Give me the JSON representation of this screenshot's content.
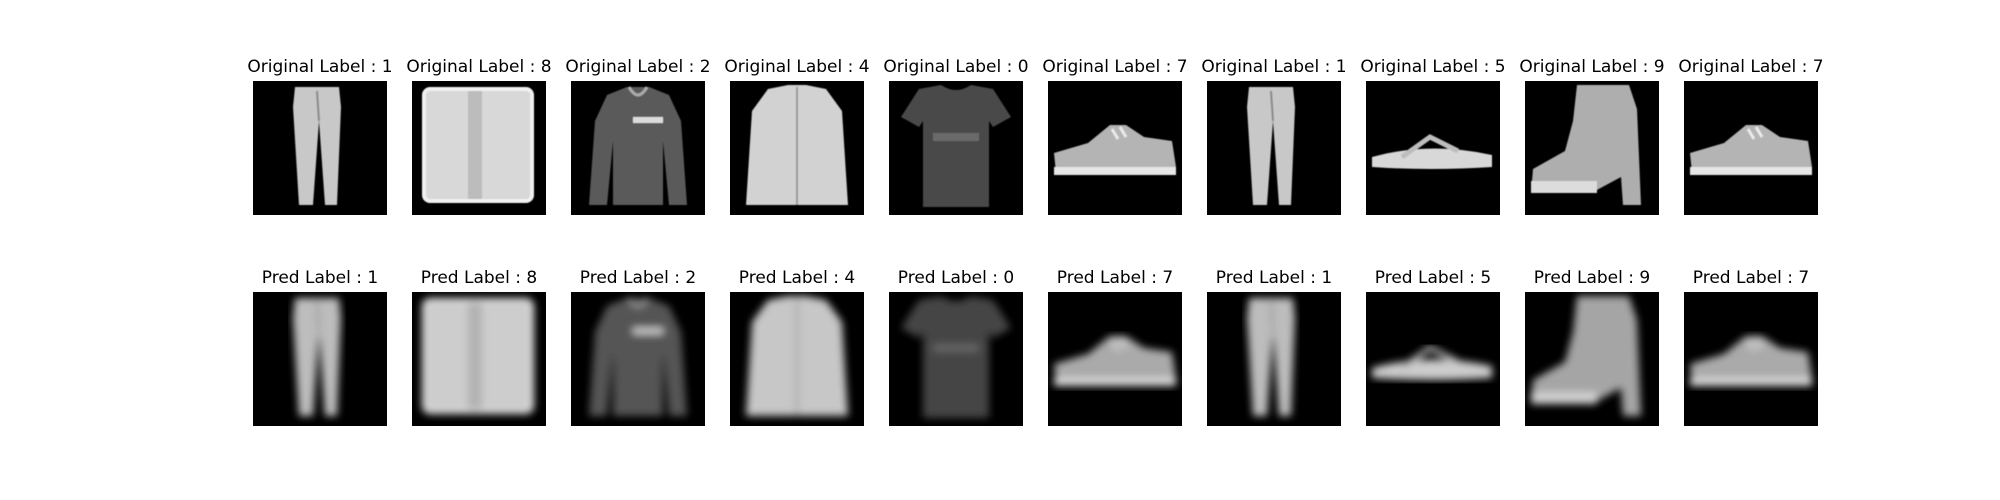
{
  "figure": {
    "rows": [
      {
        "row_name": "original",
        "label_prefix": "Original Label : ",
        "items": [
          {
            "label": "Original Label : 1",
            "class_id": 1,
            "icon": "trouser-icon",
            "style": "sharp"
          },
          {
            "label": "Original Label : 8",
            "class_id": 8,
            "icon": "bag-icon",
            "style": "sharp"
          },
          {
            "label": "Original Label : 2",
            "class_id": 2,
            "icon": "pullover-icon",
            "style": "sharp"
          },
          {
            "label": "Original Label : 4",
            "class_id": 4,
            "icon": "coat-icon",
            "style": "sharp"
          },
          {
            "label": "Original Label : 0",
            "class_id": 0,
            "icon": "tshirt-icon",
            "style": "sharp"
          },
          {
            "label": "Original Label : 7",
            "class_id": 7,
            "icon": "sneaker-icon",
            "style": "sharp"
          },
          {
            "label": "Original Label : 1",
            "class_id": 1,
            "icon": "trouser-icon",
            "style": "sharp"
          },
          {
            "label": "Original Label : 5",
            "class_id": 5,
            "icon": "sandal-icon",
            "style": "sharp"
          },
          {
            "label": "Original Label : 9",
            "class_id": 9,
            "icon": "ankle-boot-icon",
            "style": "sharp"
          },
          {
            "label": "Original Label : 7",
            "class_id": 7,
            "icon": "sneaker-icon",
            "style": "sharp"
          }
        ]
      },
      {
        "row_name": "predicted",
        "label_prefix": "Pred Label : ",
        "items": [
          {
            "label": "Pred Label : 1",
            "class_id": 1,
            "icon": "trouser-icon",
            "style": "blurred"
          },
          {
            "label": "Pred Label : 8",
            "class_id": 8,
            "icon": "bag-icon",
            "style": "blurred"
          },
          {
            "label": "Pred Label : 2",
            "class_id": 2,
            "icon": "pullover-icon",
            "style": "blurred"
          },
          {
            "label": "Pred Label : 4",
            "class_id": 4,
            "icon": "coat-icon",
            "style": "blurred"
          },
          {
            "label": "Pred Label : 0",
            "class_id": 0,
            "icon": "tshirt-icon",
            "style": "blurred"
          },
          {
            "label": "Pred Label : 7",
            "class_id": 7,
            "icon": "sneaker-icon",
            "style": "blurred"
          },
          {
            "label": "Pred Label : 1",
            "class_id": 1,
            "icon": "trouser-icon",
            "style": "blurred"
          },
          {
            "label": "Pred Label : 5",
            "class_id": 5,
            "icon": "sandal-icon",
            "style": "blurred"
          },
          {
            "label": "Pred Label : 9",
            "class_id": 9,
            "icon": "ankle-boot-icon",
            "style": "blurred"
          },
          {
            "label": "Pred Label : 7",
            "class_id": 7,
            "icon": "sneaker-icon",
            "style": "blurred"
          }
        ]
      }
    ],
    "colors": {
      "background": "#ffffff",
      "image_bg": "#000000",
      "text": "#000000"
    }
  }
}
